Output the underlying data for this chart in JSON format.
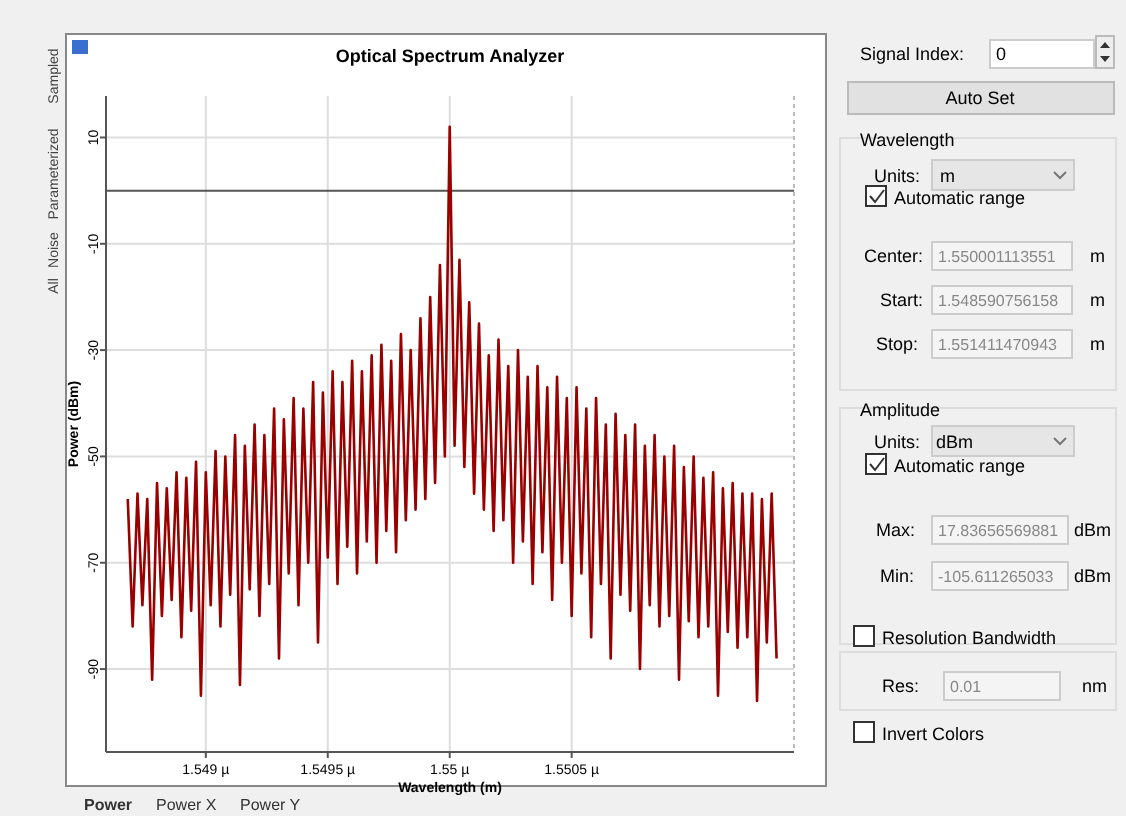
{
  "chart_data": {
    "type": "line",
    "title": "Optical Spectrum Analyzer",
    "xlabel": "Wavelength (m)",
    "ylabel": "Power (dBm)",
    "xlim": [
      1.5485908,
      1.5514115
    ],
    "ylim": [
      -105.6,
      17.8
    ],
    "xticks": [
      {
        "value": 1.549,
        "label": "1.549 µ"
      },
      {
        "value": 1.5495,
        "label": "1.5495 µ"
      },
      {
        "value": 1.55,
        "label": "1.55 µ"
      },
      {
        "value": 1.5505,
        "label": "1.5505 µ"
      }
    ],
    "yticks": [
      10,
      -10,
      -30,
      -50,
      -70,
      -90
    ],
    "grid": true,
    "ref_lines": [
      {
        "axis": "y",
        "value": 0,
        "color": "#555555"
      }
    ],
    "x": [
      1.54868,
      1.5487,
      1.54872,
      1.54874,
      1.54876,
      1.54878,
      1.5488,
      1.54882,
      1.54884,
      1.54886,
      1.54888,
      1.5489,
      1.54892,
      1.54894,
      1.54896,
      1.54898,
      1.549,
      1.54902,
      1.54904,
      1.54906,
      1.54908,
      1.5491,
      1.54912,
      1.54914,
      1.54916,
      1.54918,
      1.5492,
      1.54922,
      1.54924,
      1.54926,
      1.54928,
      1.5493,
      1.54932,
      1.54934,
      1.54936,
      1.54938,
      1.5494,
      1.54942,
      1.54944,
      1.54946,
      1.54948,
      1.5495,
      1.54952,
      1.54954,
      1.54956,
      1.54958,
      1.5496,
      1.54962,
      1.54964,
      1.54966,
      1.54968,
      1.5497,
      1.54972,
      1.54974,
      1.54976,
      1.54978,
      1.5498,
      1.54982,
      1.54984,
      1.54986,
      1.54988,
      1.5499,
      1.54992,
      1.54994,
      1.54996,
      1.54998,
      1.55,
      1.55002,
      1.55004,
      1.55006,
      1.55008,
      1.5501,
      1.55012,
      1.55014,
      1.55016,
      1.55018,
      1.5502,
      1.55022,
      1.55024,
      1.55026,
      1.55028,
      1.5503,
      1.55032,
      1.55034,
      1.55036,
      1.55038,
      1.5504,
      1.55042,
      1.55044,
      1.55046,
      1.55048,
      1.5505,
      1.55052,
      1.55054,
      1.55056,
      1.55058,
      1.5506,
      1.55062,
      1.55064,
      1.55066,
      1.55068,
      1.5507,
      1.55072,
      1.55074,
      1.55076,
      1.55078,
      1.5508,
      1.55082,
      1.55084,
      1.55086,
      1.55088,
      1.5509,
      1.55092,
      1.55094,
      1.55096,
      1.55098,
      1.551,
      1.55102,
      1.55104,
      1.55106,
      1.55108,
      1.5511,
      1.55112,
      1.55114,
      1.55116,
      1.55118,
      1.5512,
      1.55122,
      1.55124,
      1.55126,
      1.55128,
      1.5513,
      1.55132,
      1.55134
    ],
    "series": [
      {
        "color": "#990000",
        "values": [
          -58,
          -82,
          -57,
          -78,
          -58,
          -92,
          -55,
          -80,
          -56,
          -77,
          -53,
          -84,
          -54,
          -79,
          -51,
          -95,
          -53,
          -78,
          -49,
          -82,
          -50,
          -76,
          -46,
          -93,
          -48,
          -75,
          -44,
          -80,
          -46,
          -74,
          -41,
          -88,
          -43,
          -72,
          -39,
          -78,
          -41,
          -70,
          -36,
          -85,
          -38,
          -69,
          -34,
          -74,
          -36,
          -67,
          -32,
          -72,
          -34,
          -66,
          -31,
          -70,
          -29,
          -64,
          -32,
          -68,
          -27,
          -62,
          -30,
          -60,
          -24,
          -58,
          -20,
          -55,
          -14,
          -50,
          12,
          -48,
          -13,
          -52,
          -21,
          -57,
          -25,
          -60,
          -31,
          -64,
          -28,
          -62,
          -33,
          -70,
          -30,
          -66,
          -35,
          -74,
          -33,
          -68,
          -37,
          -77,
          -35,
          -70,
          -39,
          -80,
          -37,
          -72,
          -41,
          -84,
          -39,
          -74,
          -44,
          -88,
          -42,
          -76,
          -46,
          -79,
          -44,
          -90,
          -48,
          -78,
          -46,
          -82,
          -50,
          -80,
          -48,
          -92,
          -52,
          -81,
          -50,
          -84,
          -54,
          -82,
          -53,
          -95,
          -56,
          -83,
          -55,
          -86,
          -57,
          -84,
          -57,
          -96,
          -58,
          -85,
          -57,
          -88
        ]
      }
    ],
    "annotations": [
      "Signal Index:",
      "0",
      "Auto Set",
      "Wavelength",
      "Units:",
      "m",
      "Automatic range",
      "Center:",
      "1.550001113551",
      "m",
      "Start:",
      "1.548590756158",
      "m",
      "Stop:",
      "1.551411470943",
      "m",
      "Amplitude",
      "Units:",
      "dBm",
      "Automatic range",
      "Max:",
      "17.83656569881",
      "dBm",
      "Min:",
      "-105.611265033",
      "dBm",
      "Resolution Bandwidth",
      "Res:",
      "0.01",
      "nm",
      "Invert Colors",
      "Sampled",
      "Parameterized",
      "Noise",
      "All",
      "Power",
      "Power X",
      "Power Y"
    ]
  }
}
